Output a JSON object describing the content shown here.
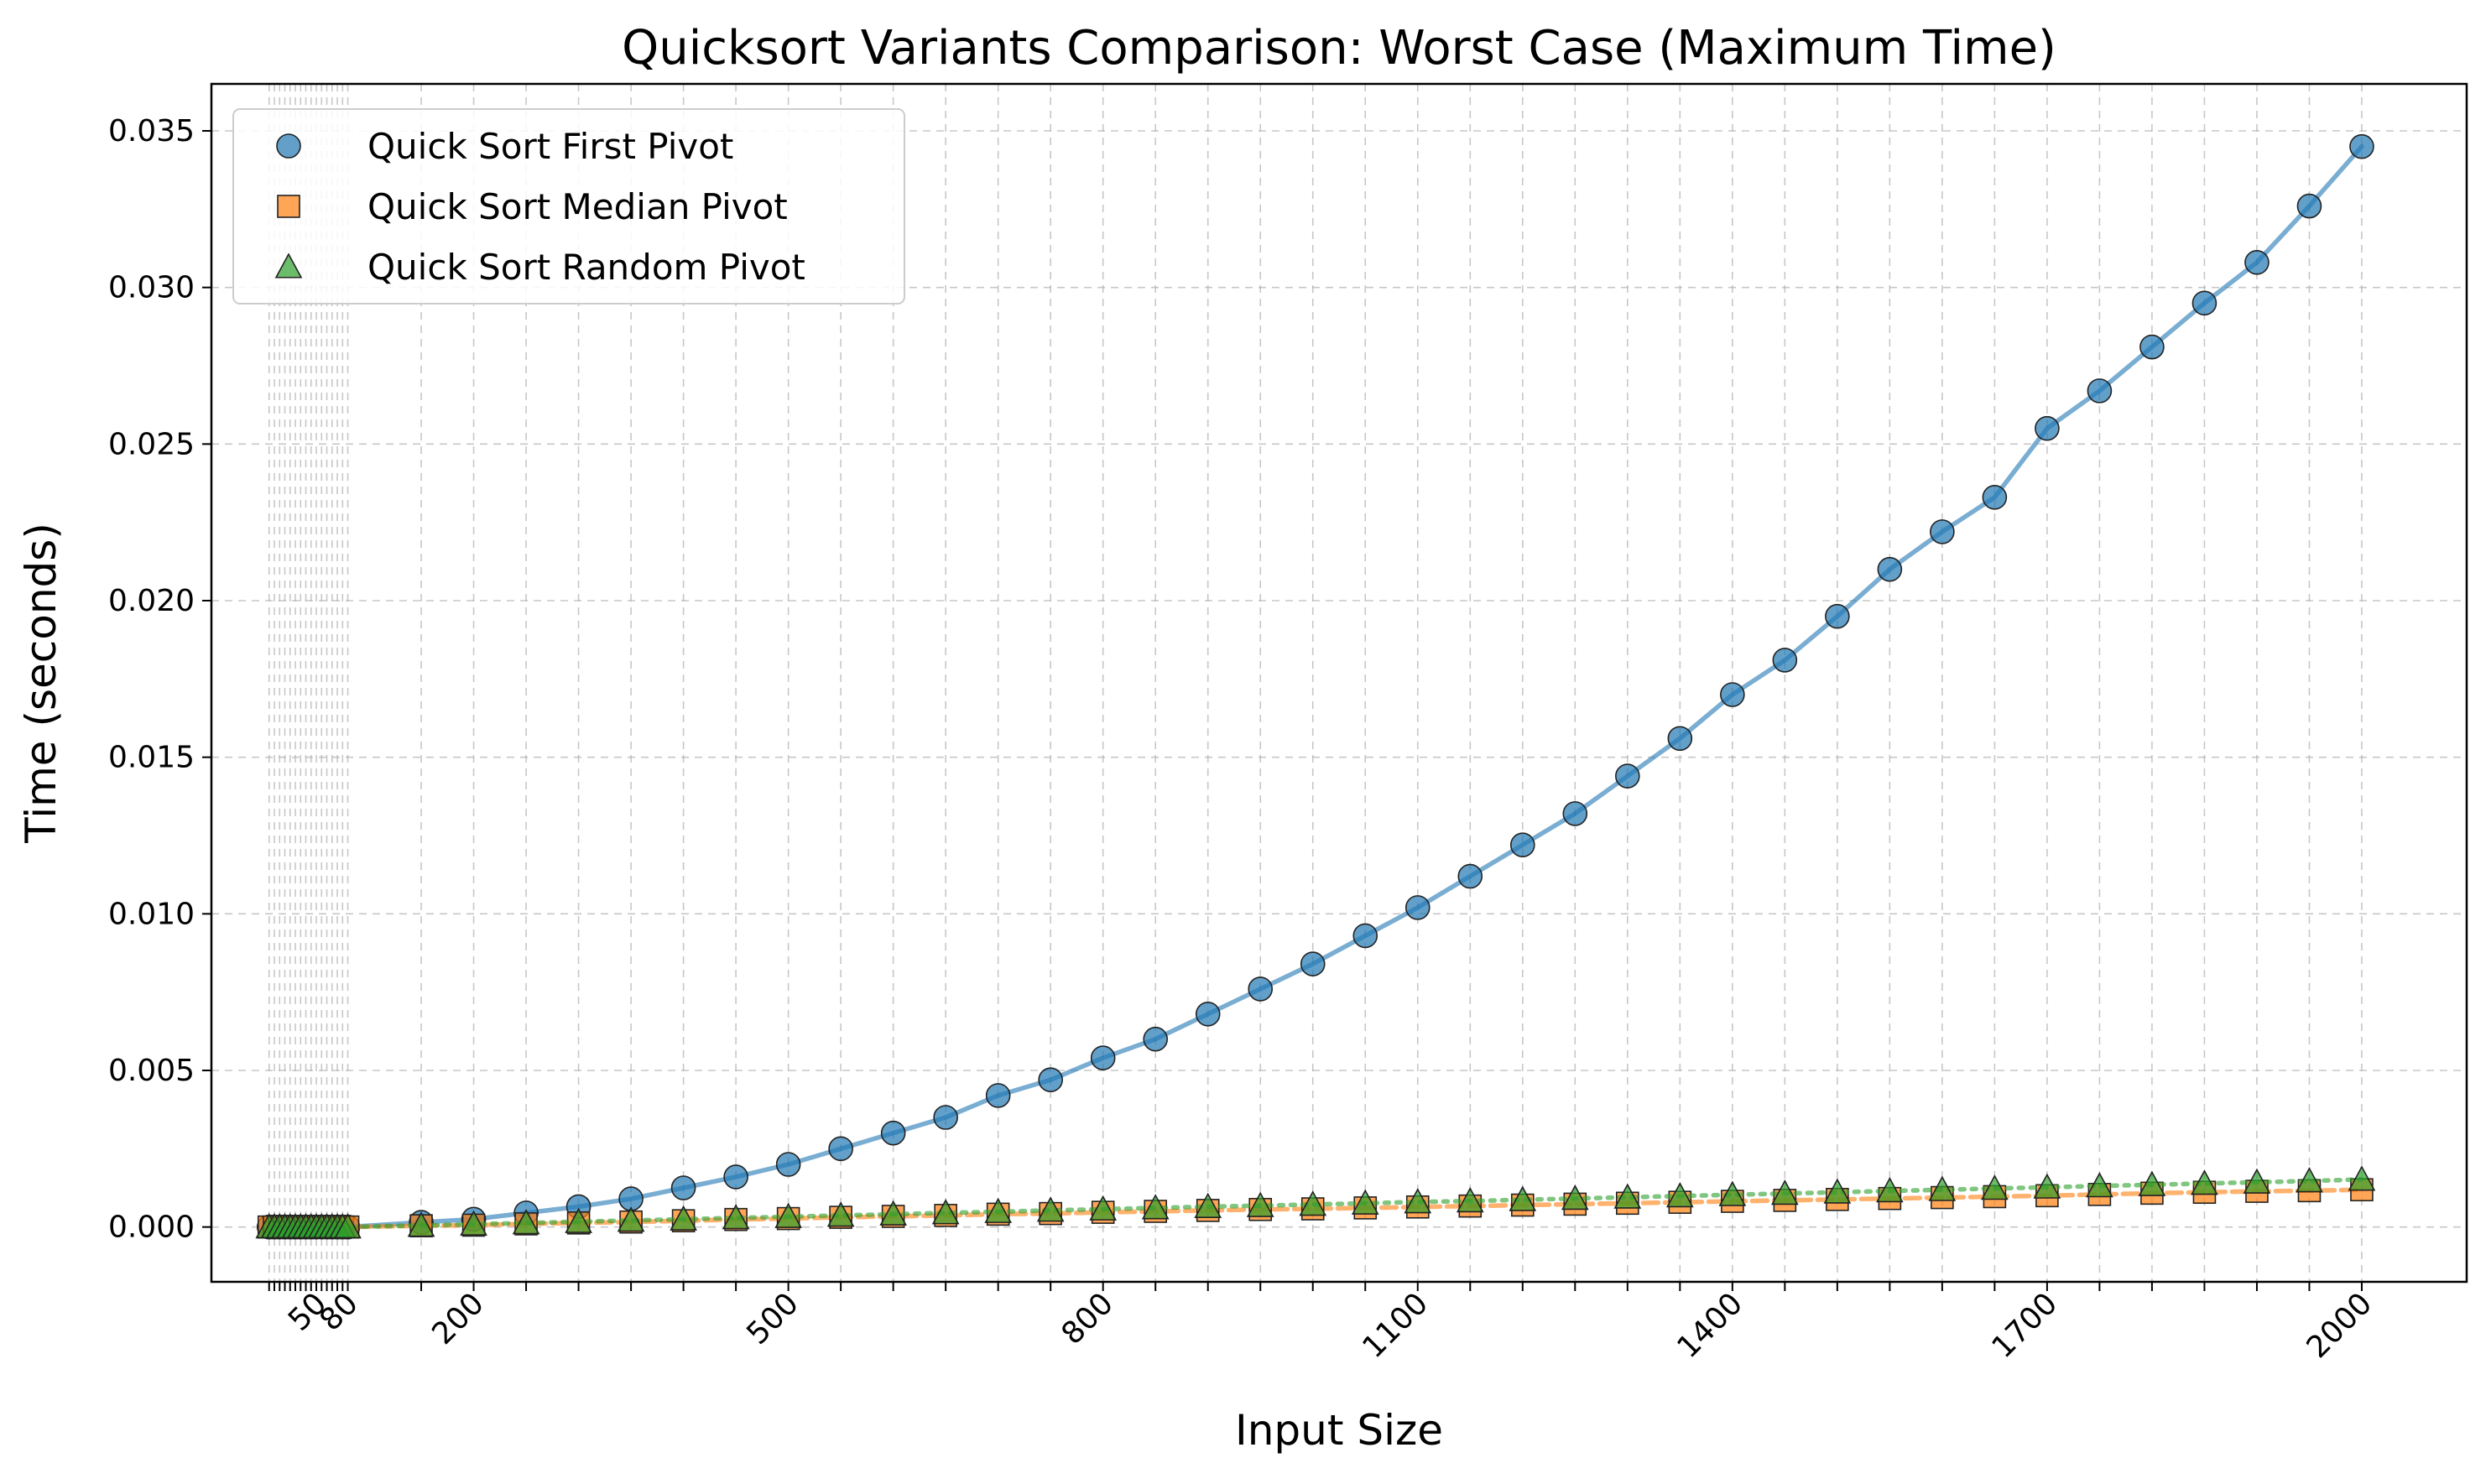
{
  "chart_data": {
    "type": "scatter",
    "title": "Quicksort Variants Comparison: Worst Case (Maximum Time)",
    "xlabel": "Input Size",
    "ylabel": "Time (seconds)",
    "xlim": [
      -50,
      2100
    ],
    "ylim": [
      -0.00175,
      0.0365
    ],
    "grid": true,
    "legend_position": "upper-left",
    "x_tick_labels": [
      "50",
      "80",
      "200",
      "500",
      "800",
      "1100",
      "1400",
      "1700",
      "2000"
    ],
    "y_tick_labels": [
      "0.000",
      "0.005",
      "0.010",
      "0.015",
      "0.020",
      "0.025",
      "0.030",
      "0.035"
    ],
    "x": [
      5,
      10,
      15,
      20,
      25,
      30,
      35,
      40,
      45,
      50,
      55,
      60,
      65,
      70,
      75,
      80,
      150,
      200,
      250,
      300,
      350,
      400,
      450,
      500,
      550,
      600,
      650,
      700,
      750,
      800,
      850,
      900,
      950,
      1000,
      1050,
      1100,
      1150,
      1200,
      1250,
      1300,
      1350,
      1400,
      1450,
      1500,
      1550,
      1600,
      1650,
      1700,
      1750,
      1800,
      1850,
      1900,
      1950,
      2000
    ],
    "series": [
      {
        "name": "Quick Sort First Pivot",
        "color": "#1f77b4",
        "marker": "circle",
        "line_style": "solid",
        "values": [
          0.0,
          0.0,
          0.0,
          0.0,
          0.0,
          0.0,
          0.0,
          0.0,
          0.0,
          0.0,
          0.0,
          0.0,
          0.0,
          0.0,
          0.0,
          0.0,
          0.00015,
          0.00025,
          0.00045,
          0.00065,
          0.0009,
          0.00125,
          0.0016,
          0.002,
          0.0025,
          0.003,
          0.0035,
          0.0042,
          0.0047,
          0.0054,
          0.006,
          0.0068,
          0.0076,
          0.0084,
          0.0093,
          0.0102,
          0.0112,
          0.0122,
          0.0132,
          0.0144,
          0.0156,
          0.017,
          0.0181,
          0.0195,
          0.021,
          0.0222,
          0.0233,
          0.0255,
          0.0267,
          0.0281,
          0.0295,
          0.0308,
          0.0326,
          0.0345
        ]
      },
      {
        "name": "Quick Sort Median Pivot",
        "color": "#ff7f0e",
        "marker": "square",
        "line_style": "dashed",
        "values": [
          0.0,
          0.0,
          0.0,
          0.0,
          0.0,
          0.0,
          0.0,
          0.0,
          0.0,
          0.0,
          0.0,
          0.0,
          0.0,
          0.0,
          0.0,
          0.0,
          4e-05,
          6e-05,
          0.0001,
          0.00013,
          0.00016,
          0.0002,
          0.00024,
          0.00027,
          0.00031,
          0.00034,
          0.00037,
          0.00041,
          0.00043,
          0.00047,
          0.0005,
          0.00053,
          0.00056,
          0.00058,
          0.00061,
          0.00064,
          0.00067,
          0.0007,
          0.00073,
          0.00076,
          0.00079,
          0.00082,
          0.00085,
          0.00088,
          0.00091,
          0.00094,
          0.00097,
          0.001,
          0.00104,
          0.00108,
          0.00111,
          0.00114,
          0.00116,
          0.00119
        ]
      },
      {
        "name": "Quick Sort Random Pivot",
        "color": "#2ca02c",
        "marker": "triangle",
        "line_style": "dotted",
        "values": [
          0.0,
          0.0,
          0.0,
          0.0,
          0.0,
          0.0,
          0.0,
          0.0,
          0.0,
          0.0,
          0.0,
          0.0,
          0.0,
          0.0,
          0.0,
          0.0,
          5e-05,
          9e-05,
          0.00013,
          0.00017,
          0.00021,
          0.00025,
          0.00029,
          0.00033,
          0.00037,
          0.00041,
          0.00045,
          0.00049,
          0.00053,
          0.00057,
          0.00061,
          0.00065,
          0.00068,
          0.00072,
          0.00076,
          0.0008,
          0.00083,
          0.00087,
          0.00091,
          0.00095,
          0.00099,
          0.00103,
          0.00107,
          0.00111,
          0.00115,
          0.00119,
          0.00123,
          0.00127,
          0.00131,
          0.00135,
          0.00139,
          0.00143,
          0.00147,
          0.00152
        ]
      }
    ]
  }
}
